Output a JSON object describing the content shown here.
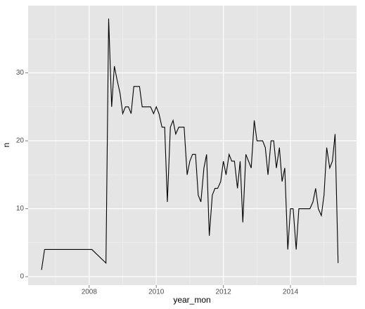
{
  "chart_data": {
    "type": "line",
    "x_label": "year_mon",
    "y_label": "n",
    "x": [
      2006.58,
      2006.67,
      2008.08,
      2008.5,
      2008.58,
      2008.67,
      2008.75,
      2008.83,
      2008.92,
      2009.0,
      2009.08,
      2009.17,
      2009.25,
      2009.33,
      2009.42,
      2009.5,
      2009.58,
      2009.67,
      2009.75,
      2009.83,
      2009.92,
      2010.0,
      2010.08,
      2010.17,
      2010.25,
      2010.33,
      2010.42,
      2010.5,
      2010.58,
      2010.67,
      2010.75,
      2010.83,
      2010.92,
      2011.0,
      2011.08,
      2011.17,
      2011.25,
      2011.33,
      2011.42,
      2011.5,
      2011.58,
      2011.67,
      2011.75,
      2011.83,
      2011.92,
      2012.0,
      2012.08,
      2012.17,
      2012.25,
      2012.33,
      2012.42,
      2012.5,
      2012.58,
      2012.67,
      2012.75,
      2012.83,
      2012.92,
      2013.0,
      2013.08,
      2013.17,
      2013.25,
      2013.33,
      2013.42,
      2013.5,
      2013.58,
      2013.67,
      2013.75,
      2013.83,
      2013.92,
      2014.0,
      2014.08,
      2014.17,
      2014.25,
      2014.33,
      2014.42,
      2014.5,
      2014.58,
      2014.67,
      2014.75,
      2014.83,
      2014.92,
      2015.0,
      2015.08,
      2015.17,
      2015.25,
      2015.33,
      2015.42
    ],
    "series": [
      {
        "name": "n",
        "color": "#000000",
        "values": [
          1,
          4,
          4,
          2,
          38,
          25,
          31,
          29,
          27,
          24,
          25,
          25,
          24,
          28,
          28,
          28,
          25,
          25,
          25,
          25,
          24,
          25,
          24,
          22,
          22,
          11,
          22,
          23,
          21,
          22,
          22,
          22,
          15,
          17,
          18,
          18,
          12,
          11,
          16,
          18,
          6,
          12,
          13,
          13,
          14,
          17,
          15,
          18,
          17,
          17,
          13,
          17,
          8,
          18,
          17,
          16,
          23,
          20,
          20,
          20,
          19,
          15,
          20,
          20,
          16,
          19,
          14,
          16,
          4,
          10,
          10,
          4,
          10,
          10,
          10,
          10,
          10,
          11,
          13,
          10,
          9,
          12,
          19,
          16,
          17,
          21,
          2
        ]
      }
    ],
    "xlim": [
      2006.18,
      2015.97
    ],
    "xticks": [
      2008,
      2010,
      2012,
      2014
    ],
    "ylim": [
      -1.24,
      39.9
    ],
    "yticks": [
      0,
      10,
      20,
      30
    ],
    "grid": true
  }
}
